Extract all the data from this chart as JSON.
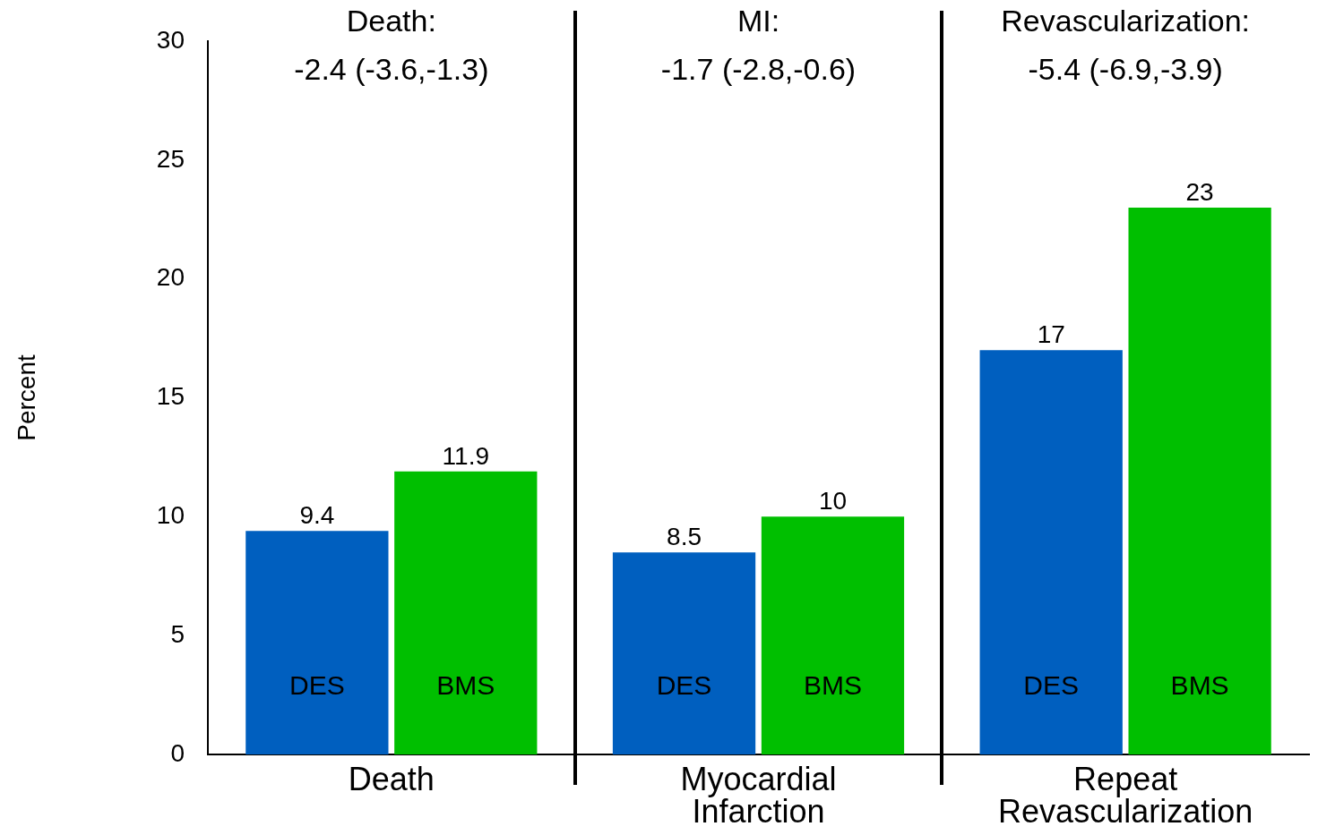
{
  "chart_data": {
    "type": "bar",
    "ylabel": "Percent",
    "categories": [
      "Death",
      "Myocardial Infarction",
      "Repeat Revascularization"
    ],
    "series": [
      {
        "name": "DES",
        "color": "#005fbf",
        "values": [
          9.4,
          8.5,
          17
        ]
      },
      {
        "name": "BMS",
        "color": "#00bf00",
        "values": [
          11.9,
          10,
          23
        ]
      }
    ],
    "ylim": [
      0,
      30
    ],
    "yticks": [
      0,
      5,
      10,
      15,
      20,
      25,
      30
    ],
    "grid": false,
    "legend": false,
    "data_labels": true,
    "annotations": [
      "Death:\n-2.4 (-3.6,-1.3)",
      "MI:\n-1.7 (-2.8,-0.6)",
      "Revascularization:\n-5.4 (-6.9,-3.9)"
    ]
  }
}
